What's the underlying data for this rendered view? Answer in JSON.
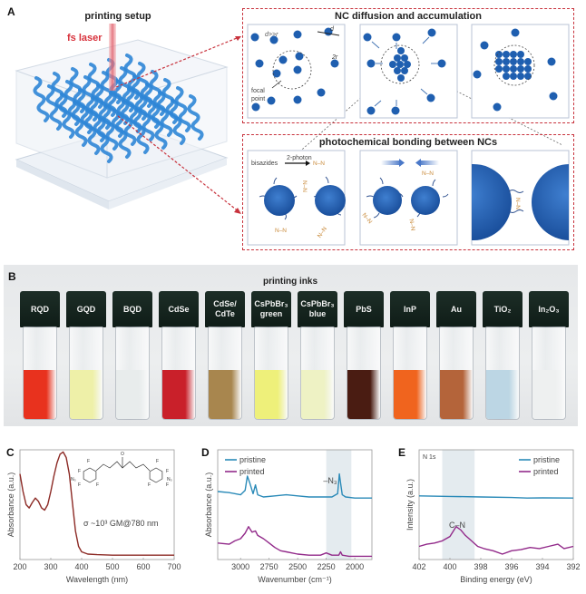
{
  "panel_a": {
    "label": "A",
    "setup_title": "printing setup",
    "laser_label": "fs laser",
    "diffusion_box": {
      "title": "NC diffusion and accumulation",
      "annotations": {
        "d_gg_r": "d>>r",
        "d": "d",
        "two_r": "2r",
        "focal": "focal",
        "point": "point"
      }
    },
    "bonding_box": {
      "title": "photochemical bonding between NCs",
      "bisazides": "bisazides",
      "two_photon": "2-photon",
      "nn": "N–N"
    },
    "colors": {
      "nc_blue": "#1f5fb0",
      "dash_red": "#c8323c",
      "laser": "#e8707a",
      "azide": "#c98a3a"
    }
  },
  "panel_b": {
    "label": "B",
    "title": "printing inks",
    "vials": [
      {
        "line1": "RQD",
        "line2": "",
        "color": "#e8321e"
      },
      {
        "line1": "GQD",
        "line2": "",
        "color": "#eef0a8"
      },
      {
        "line1": "BQD",
        "line2": "",
        "color": "#e8ecec"
      },
      {
        "line1": "CdSe",
        "line2": "",
        "color": "#c9202a"
      },
      {
        "line1": "CdSe/",
        "line2": "CdTe",
        "color": "#a8864e"
      },
      {
        "line1": "CsPbBr₃",
        "line2": "green",
        "color": "#eef07a"
      },
      {
        "line1": "CsPbBr₃",
        "line2": "blue",
        "color": "#eef2c4"
      },
      {
        "line1": "PbS",
        "line2": "",
        "color": "#4a1c12"
      },
      {
        "line1": "InP",
        "line2": "",
        "color": "#f0641e"
      },
      {
        "line1": "Au",
        "line2": "",
        "color": "#b4643a"
      },
      {
        "line1": "TiO₂",
        "line2": "",
        "color": "#bcd6e4"
      },
      {
        "line1": "In₂O₃",
        "line2": "",
        "color": "#eef0f0"
      }
    ]
  },
  "chart_data": [
    {
      "panel": "C",
      "type": "line",
      "xlabel": "Wavelength (nm)",
      "ylabel": "Absorbance (a.u.)",
      "xlim": [
        200,
        700
      ],
      "xticks": [
        "200",
        "300",
        "400",
        "500",
        "600",
        "700"
      ],
      "annotation": "σ ~10³ GM@780 nm",
      "molecule_labels": {
        "f": "F",
        "o": "O",
        "n3": "N₃"
      },
      "series": [
        {
          "name": "bisazide",
          "color": "#8c2a25",
          "x": [
            200,
            210,
            220,
            230,
            240,
            250,
            260,
            270,
            280,
            290,
            300,
            310,
            320,
            330,
            340,
            350,
            360,
            370,
            380,
            390,
            400,
            420,
            450,
            500,
            600,
            700
          ],
          "y": [
            0.78,
            0.62,
            0.5,
            0.47,
            0.52,
            0.56,
            0.53,
            0.47,
            0.45,
            0.5,
            0.62,
            0.76,
            0.88,
            0.96,
            0.98,
            0.93,
            0.78,
            0.52,
            0.26,
            0.12,
            0.07,
            0.05,
            0.045,
            0.04,
            0.04,
            0.04
          ]
        }
      ]
    },
    {
      "panel": "D",
      "type": "line",
      "xlabel": "Wavenumber (cm⁻¹)",
      "ylabel": "Absorbance (a.u.)",
      "xlim": [
        3200,
        1850
      ],
      "xticks": [
        "3000",
        "2750",
        "2500",
        "2250",
        "2000"
      ],
      "highlight_range": [
        2250,
        2030
      ],
      "annotation": "–N₃",
      "legend": "top-left",
      "series": [
        {
          "name": "pristine",
          "color": "#2a8ab8",
          "x": [
            3200,
            3100,
            3000,
            2960,
            2940,
            2920,
            2890,
            2870,
            2850,
            2800,
            2700,
            2600,
            2500,
            2400,
            2300,
            2200,
            2150,
            2135,
            2125,
            2110,
            2080,
            2000,
            1900,
            1850
          ],
          "y": [
            0.62,
            0.61,
            0.59,
            0.63,
            0.76,
            0.7,
            0.6,
            0.68,
            0.59,
            0.57,
            0.58,
            0.59,
            0.58,
            0.57,
            0.57,
            0.57,
            0.6,
            0.78,
            0.7,
            0.59,
            0.57,
            0.56,
            0.56,
            0.56
          ]
        },
        {
          "name": "printed",
          "color": "#922a8a",
          "x": [
            3200,
            3100,
            3050,
            3000,
            2960,
            2930,
            2900,
            2870,
            2850,
            2800,
            2750,
            2700,
            2650,
            2600,
            2500,
            2400,
            2300,
            2250,
            2200,
            2140,
            2125,
            2110,
            2050,
            2000,
            1900,
            1850
          ],
          "y": [
            0.15,
            0.14,
            0.17,
            0.19,
            0.24,
            0.3,
            0.25,
            0.26,
            0.22,
            0.19,
            0.15,
            0.11,
            0.08,
            0.07,
            0.05,
            0.04,
            0.04,
            0.06,
            0.04,
            0.04,
            0.07,
            0.04,
            0.03,
            0.03,
            0.03,
            0.03
          ]
        }
      ]
    },
    {
      "panel": "E",
      "type": "line",
      "xlabel": "Binding energy (eV)",
      "ylabel": "Intensity (a.u.)",
      "xlim": [
        402,
        392
      ],
      "xticks": [
        "402",
        "400",
        "398",
        "396",
        "394",
        "392"
      ],
      "highlight_range": [
        400.5,
        398.4
      ],
      "corner_label": "N 1s",
      "annotation": "C–N",
      "legend": "top-right",
      "series": [
        {
          "name": "pristine",
          "color": "#2a8ab8",
          "x": [
            402,
            400,
            398,
            396,
            395,
            394,
            392
          ],
          "y": [
            0.58,
            0.575,
            0.57,
            0.565,
            0.56,
            0.562,
            0.56
          ]
        },
        {
          "name": "printed",
          "color": "#922a8a",
          "x": [
            402,
            401.5,
            401,
            400.5,
            400,
            399.6,
            399.3,
            399,
            398.6,
            398.2,
            397.8,
            397.2,
            396.6,
            396,
            395.4,
            394.8,
            394.2,
            393.6,
            393,
            392.6,
            392
          ],
          "y": [
            0.12,
            0.14,
            0.15,
            0.17,
            0.21,
            0.3,
            0.27,
            0.22,
            0.17,
            0.12,
            0.1,
            0.08,
            0.05,
            0.08,
            0.09,
            0.11,
            0.1,
            0.12,
            0.14,
            0.1,
            0.12
          ]
        }
      ]
    }
  ]
}
